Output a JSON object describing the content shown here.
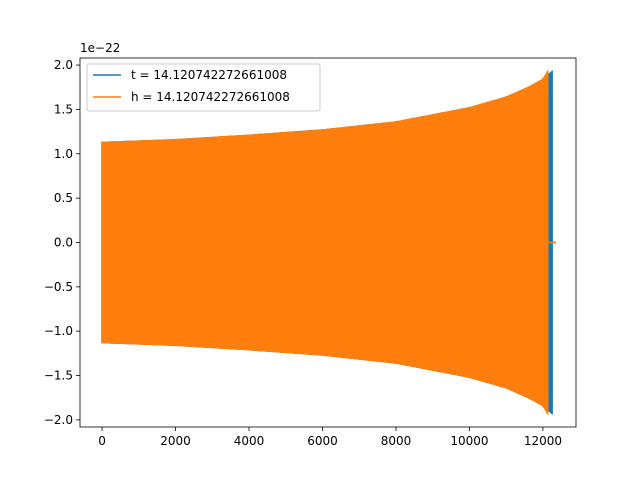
{
  "chart_data": {
    "type": "line",
    "title": "",
    "xlabel": "",
    "ylabel": "",
    "xlim": [
      -600,
      12900
    ],
    "ylim": [
      -2.08,
      2.08
    ],
    "y_offset_label": "1e−22",
    "x_ticks": [
      0,
      2000,
      4000,
      6000,
      8000,
      10000,
      12000
    ],
    "x_tick_labels": [
      "0",
      "2000",
      "4000",
      "6000",
      "8000",
      "10000",
      "12000"
    ],
    "y_ticks": [
      -2.0,
      -1.5,
      -1.0,
      -0.5,
      0.0,
      0.5,
      1.0,
      1.5,
      2.0
    ],
    "y_tick_labels": [
      "−2.0",
      "−1.5",
      "−1.0",
      "−0.5",
      "0.0",
      "0.5",
      "1.0",
      "1.5",
      "2.0"
    ],
    "grid": false,
    "legend_position": "top-left",
    "series": [
      {
        "name": "t = 14.120742272661008",
        "color": "#1f77b4",
        "envelope": {
          "x": [
            0,
            2000,
            4000,
            6000,
            8000,
            10000,
            11000,
            11600,
            12000,
            12250
          ],
          "upper": [
            1.13,
            1.16,
            1.21,
            1.27,
            1.36,
            1.52,
            1.64,
            1.75,
            1.84,
            1.93
          ],
          "lower": [
            -1.13,
            -1.16,
            -1.21,
            -1.27,
            -1.36,
            -1.52,
            -1.64,
            -1.75,
            -1.84,
            -1.93
          ]
        },
        "flat_after": 12250,
        "flat_until": 12350
      },
      {
        "name": "h = 14.120742272661008",
        "color": "#ff7f0e",
        "envelope": {
          "x": [
            0,
            2000,
            4000,
            6000,
            8000,
            10000,
            11000,
            11600,
            12000,
            12130
          ],
          "upper": [
            1.13,
            1.16,
            1.21,
            1.27,
            1.36,
            1.52,
            1.64,
            1.75,
            1.84,
            1.93
          ],
          "lower": [
            -1.13,
            -1.16,
            -1.21,
            -1.27,
            -1.36,
            -1.52,
            -1.64,
            -1.75,
            -1.84,
            -1.93
          ]
        },
        "flat_after": 12130,
        "flat_until": 12350
      }
    ]
  }
}
